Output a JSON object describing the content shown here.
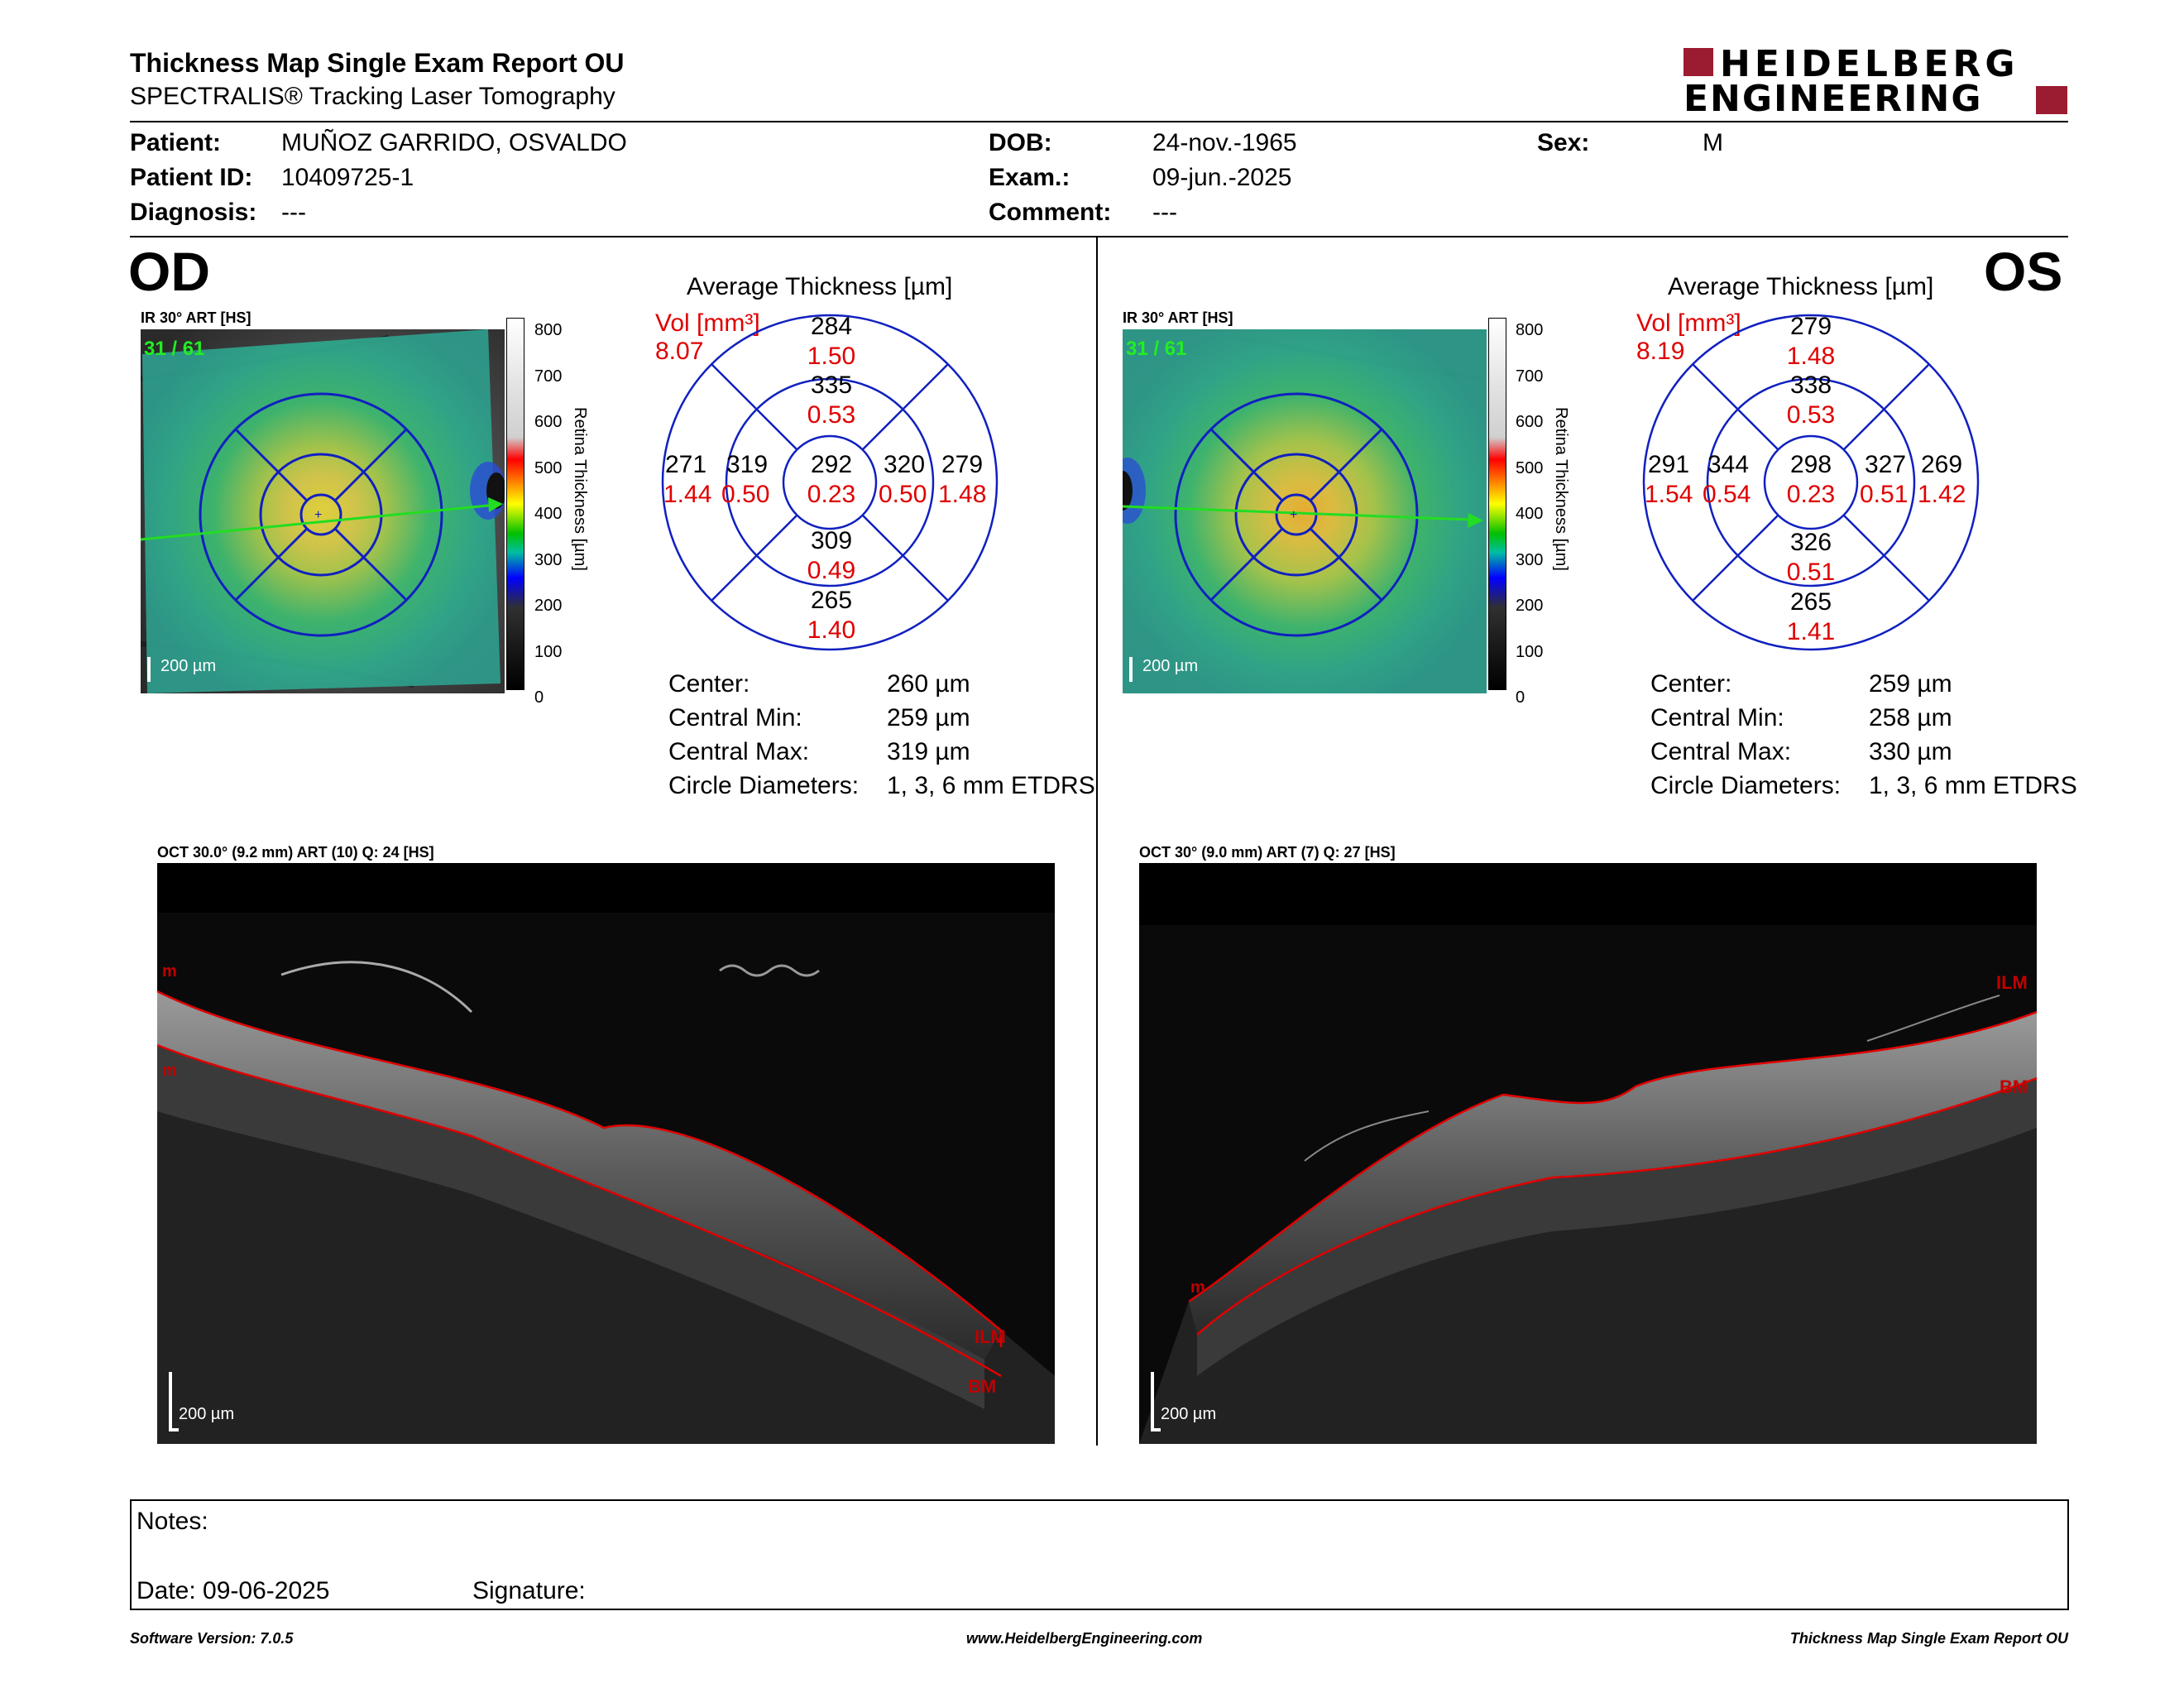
{
  "header": {
    "title": "Thickness Map Single Exam Report OU",
    "subtitle": "SPECTRALIS® Tracking Laser Tomography",
    "logo_line1": "HEIDELBERG",
    "logo_line2": "ENGINEERING",
    "logo_color": "#9b1b30"
  },
  "patient": {
    "patient_label": "Patient:",
    "patient_value": "MUÑOZ GARRIDO, OSVALDO",
    "id_label": "Patient ID:",
    "id_value": "10409725-1",
    "diagnosis_label": "Diagnosis:",
    "diagnosis_value": "---",
    "dob_label": "DOB:",
    "dob_value": "24-nov.-1965",
    "exam_label": "Exam.:",
    "exam_value": "09-jun.-2025",
    "comment_label": "Comment:",
    "comment_value": "---",
    "sex_label": "Sex:",
    "sex_value": "M"
  },
  "scale_ticks": [
    "800",
    "700",
    "600",
    "500",
    "400",
    "300",
    "200",
    "100",
    "0"
  ],
  "scale_axis_label": "Retina Thickness [µm]",
  "od": {
    "eye": "OD",
    "ir_label": "IR 30° ART [HS]",
    "frames": "31 / 61",
    "scale_bar": "200 µm",
    "etdrs_title": "Average Thickness [µm]",
    "vol_label": "Vol [mm³]",
    "vol_value": "8.07",
    "sectors": {
      "outer_sup": {
        "t": "284",
        "v": "1.50"
      },
      "inner_sup": {
        "t": "335",
        "v": "0.53"
      },
      "outer_nas": {
        "t": "279",
        "v": "1.48"
      },
      "inner_nas": {
        "t": "320",
        "v": "0.50"
      },
      "center": {
        "t": "292",
        "v": "0.23"
      },
      "inner_tmp": {
        "t": "319",
        "v": "0.50"
      },
      "outer_tmp": {
        "t": "271",
        "v": "1.44"
      },
      "inner_inf": {
        "t": "309",
        "v": "0.49"
      },
      "outer_inf": {
        "t": "265",
        "v": "1.40"
      }
    },
    "stats": [
      {
        "label": "Center:",
        "value": "260 µm"
      },
      {
        "label": "Central Min:",
        "value": "259 µm"
      },
      {
        "label": "Central Max:",
        "value": "319 µm"
      },
      {
        "label": "Circle Diameters:",
        "value": "1, 3, 6 mm ETDRS"
      }
    ],
    "oct_label": "OCT 30.0° (9.2 mm) ART (10) Q: 24 [HS]",
    "oct_scale": "200 µm",
    "ilm": "ILM",
    "bm": "BM",
    "m_mark": "m"
  },
  "os": {
    "eye": "OS",
    "ir_label": "IR 30° ART [HS]",
    "frames": "31 / 61",
    "scale_bar": "200 µm",
    "etdrs_title": "Average Thickness [µm]",
    "vol_label": "Vol [mm³]",
    "vol_value": "8.19",
    "sectors": {
      "outer_sup": {
        "t": "279",
        "v": "1.48"
      },
      "inner_sup": {
        "t": "338",
        "v": "0.53"
      },
      "outer_nas": {
        "t": "291",
        "v": "1.54"
      },
      "inner_nas": {
        "t": "344",
        "v": "0.54"
      },
      "center": {
        "t": "298",
        "v": "0.23"
      },
      "inner_tmp": {
        "t": "327",
        "v": "0.51"
      },
      "outer_tmp": {
        "t": "269",
        "v": "1.42"
      },
      "inner_inf": {
        "t": "326",
        "v": "0.51"
      },
      "outer_inf": {
        "t": "265",
        "v": "1.41"
      }
    },
    "stats": [
      {
        "label": "Center:",
        "value": "259 µm"
      },
      {
        "label": "Central Min:",
        "value": "258 µm"
      },
      {
        "label": "Central Max:",
        "value": "330 µm"
      },
      {
        "label": "Circle Diameters:",
        "value": "1, 3, 6 mm ETDRS"
      }
    ],
    "oct_label": "OCT 30° (9.0 mm) ART (7) Q: 27 [HS]",
    "oct_scale": "200 µm",
    "ilm": "ILM",
    "bm": "BM",
    "m_mark": "m"
  },
  "notes": {
    "notes_label": "Notes:",
    "date_label": "Date: 09-06-2025",
    "signature_label": "Signature:"
  },
  "footer": {
    "software": "Software Version: 7.0.5",
    "website": "www.HeidelbergEngineering.com",
    "report": "Thickness Map Single Exam Report OU"
  }
}
